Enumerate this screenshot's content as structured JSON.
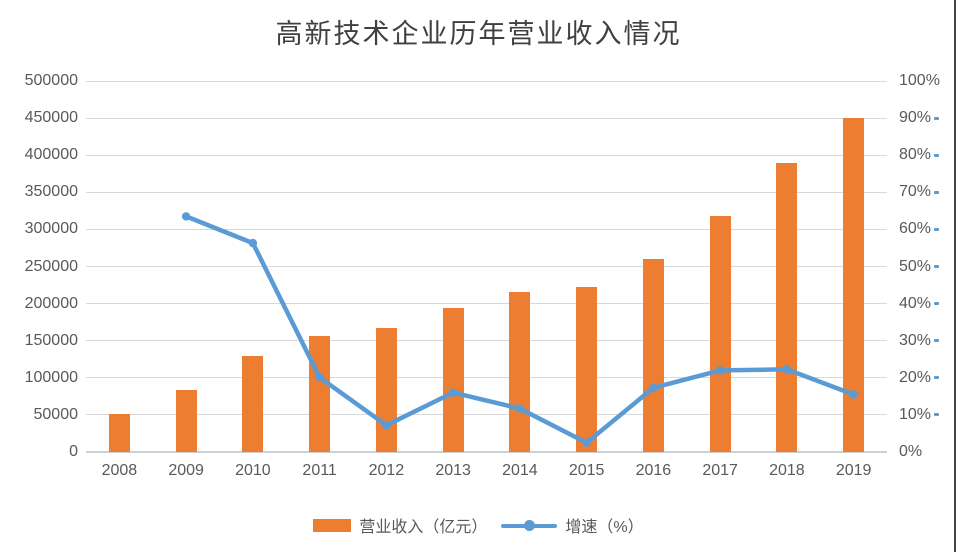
{
  "title": "高新技术企业历年营业收入情况",
  "legend": {
    "bar_label": "营业收入（亿元）",
    "line_label": "增速（%）"
  },
  "colors": {
    "bar": "#ED7D31",
    "line": "#5B9BD5",
    "grid": "#D9D9D9",
    "axis_text": "#595959",
    "title_text": "#404040"
  },
  "chart_data": {
    "type": "combo",
    "title": "高新技术企业历年营业收入情况",
    "categories": [
      "2008",
      "2009",
      "2010",
      "2011",
      "2012",
      "2013",
      "2014",
      "2015",
      "2016",
      "2017",
      "2018",
      "2019"
    ],
    "series": [
      {
        "name": "营业收入（亿元）",
        "type": "bar",
        "axis": "left",
        "values": [
          51000,
          83000,
          130000,
          156000,
          167000,
          194000,
          216000,
          222000,
          260000,
          318000,
          390000,
          450000
        ]
      },
      {
        "name": "增速（%）",
        "type": "line",
        "axis": "right",
        "values": [
          null,
          63.5,
          56.3,
          20.1,
          7.2,
          16.0,
          11.7,
          2.5,
          17.3,
          22.0,
          22.3,
          15.5
        ]
      }
    ],
    "left_axis": {
      "min": 0,
      "max": 500000,
      "step": 50000,
      "ticks": [
        "0",
        "50000",
        "100000",
        "150000",
        "200000",
        "250000",
        "300000",
        "350000",
        "400000",
        "450000",
        "500000"
      ]
    },
    "right_axis": {
      "min": 0,
      "max": 100,
      "step": 10,
      "ticks": [
        "0%",
        "10%",
        "20%",
        "30%",
        "40%",
        "50%",
        "60%",
        "70%",
        "80%",
        "90%",
        "100%"
      ]
    },
    "grid": true,
    "legend_position": "bottom"
  }
}
